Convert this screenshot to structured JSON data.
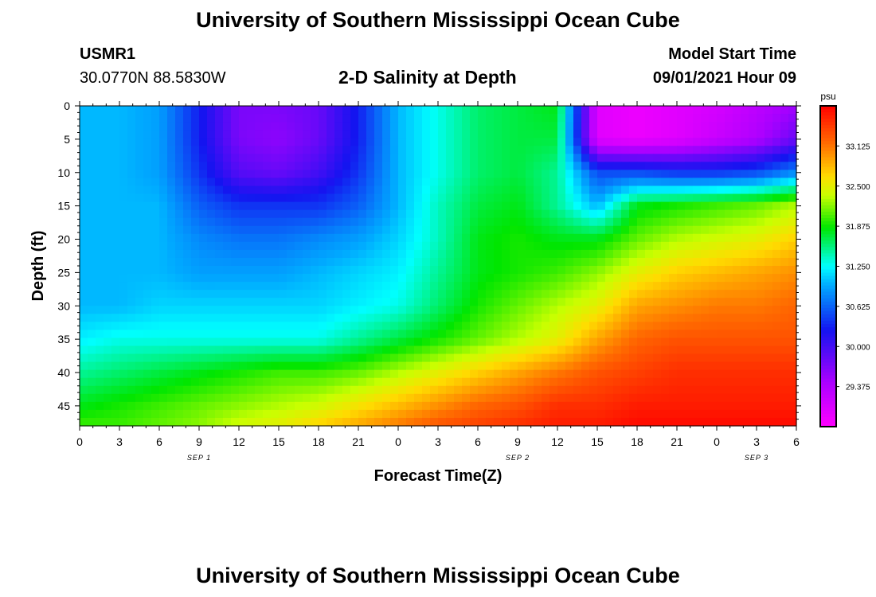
{
  "header": {
    "title": "University of Southern Mississippi Ocean Cube",
    "station_id": "USMR1",
    "station_coords": "30.0770N  88.5830W",
    "plot_title": "2-D Salinity at Depth",
    "start_label": "Model Start Time",
    "start_value": "09/01/2021 Hour 09"
  },
  "footer": {
    "title": "University of Southern Mississippi Ocean Cube"
  },
  "chart_data": {
    "type": "heatmap",
    "title": "2-D Salinity at Depth",
    "xlabel": "Forecast Time(Z)",
    "ylabel": "Depth (ft)",
    "x_ticks": [
      "0",
      "3",
      "6",
      "9",
      "12",
      "15",
      "18",
      "21",
      "0",
      "3",
      "6",
      "9",
      "12",
      "15",
      "18",
      "21",
      "0",
      "3",
      "6"
    ],
    "date_labels": [
      {
        "label": "SEP 1",
        "x_index": 3
      },
      {
        "label": "SEP 2",
        "x_index": 11
      },
      {
        "label": "SEP 3",
        "x_index": 17
      }
    ],
    "y_ticks": [
      "0",
      "5",
      "10",
      "15",
      "20",
      "25",
      "30",
      "35",
      "40",
      "45"
    ],
    "ylim": [
      0,
      48
    ],
    "colorbar": {
      "unit": "psu",
      "range": [
        28.75,
        33.75
      ],
      "ticks": [
        "33.125",
        "32.500",
        "31.875",
        "31.250",
        "30.625",
        "30.000",
        "29.375"
      ]
    },
    "x_hours": [
      0,
      3,
      6,
      9,
      12,
      15,
      18,
      21,
      24,
      27,
      30,
      33,
      36,
      39,
      42,
      45,
      48,
      51,
      54
    ],
    "y_depths": [
      0,
      5,
      10,
      15,
      20,
      25,
      30,
      35,
      40,
      45,
      48
    ],
    "values": [
      [
        31.0,
        31.0,
        30.9,
        30.3,
        29.7,
        29.7,
        29.8,
        30.3,
        31.0,
        31.3,
        31.6,
        31.7,
        31.8,
        29.0,
        28.9,
        29.0,
        29.1,
        29.3,
        29.5
      ],
      [
        31.0,
        31.0,
        30.9,
        30.3,
        29.7,
        29.6,
        29.8,
        30.3,
        31.0,
        31.3,
        31.6,
        31.7,
        31.7,
        29.0,
        28.9,
        29.0,
        29.2,
        29.4,
        29.8
      ],
      [
        31.0,
        31.0,
        30.9,
        30.4,
        29.9,
        29.8,
        30.0,
        30.4,
        31.0,
        31.3,
        31.6,
        31.7,
        31.5,
        30.5,
        30.5,
        30.4,
        30.4,
        30.5,
        30.8
      ],
      [
        31.0,
        31.0,
        31.0,
        30.6,
        30.4,
        30.4,
        30.4,
        30.6,
        31.0,
        31.4,
        31.7,
        31.8,
        31.5,
        31.0,
        31.8,
        31.9,
        32.0,
        32.1,
        32.3
      ],
      [
        31.0,
        31.0,
        31.0,
        30.8,
        30.7,
        30.7,
        30.8,
        30.9,
        31.1,
        31.4,
        31.8,
        31.9,
        31.8,
        31.8,
        32.1,
        32.3,
        32.4,
        32.5,
        32.7
      ],
      [
        31.0,
        31.0,
        31.0,
        30.9,
        30.9,
        30.9,
        31.0,
        31.1,
        31.2,
        31.5,
        31.8,
        31.9,
        32.0,
        32.2,
        32.5,
        32.7,
        32.8,
        32.9,
        33.0
      ],
      [
        31.0,
        31.0,
        31.1,
        31.1,
        31.1,
        31.1,
        31.1,
        31.2,
        31.3,
        31.6,
        31.9,
        32.1,
        32.3,
        32.5,
        32.9,
        33.0,
        33.1,
        33.1,
        33.2
      ],
      [
        31.2,
        31.3,
        31.3,
        31.3,
        31.3,
        31.3,
        31.3,
        31.5,
        31.7,
        31.9,
        32.1,
        32.3,
        32.5,
        32.9,
        33.2,
        33.3,
        33.3,
        33.3,
        33.3
      ],
      [
        31.5,
        31.6,
        31.7,
        31.8,
        31.9,
        32.0,
        32.0,
        32.1,
        32.3,
        32.5,
        32.7,
        32.9,
        33.1,
        33.3,
        33.4,
        33.5,
        33.5,
        33.5,
        33.5
      ],
      [
        31.8,
        31.9,
        32.0,
        32.1,
        32.2,
        32.3,
        32.4,
        32.6,
        32.8,
        33.0,
        33.2,
        33.3,
        33.5,
        33.5,
        33.6,
        33.6,
        33.6,
        33.6,
        33.6
      ],
      [
        32.0,
        32.0,
        32.1,
        32.2,
        32.4,
        32.5,
        32.7,
        32.9,
        33.1,
        33.3,
        33.4,
        33.5,
        33.6,
        33.6,
        33.7,
        33.7,
        33.7,
        33.7,
        33.7
      ]
    ]
  }
}
